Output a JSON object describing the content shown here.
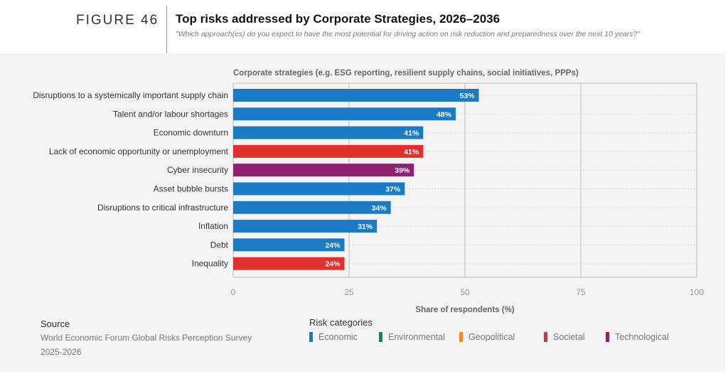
{
  "header": {
    "figure": "FIGURE 46",
    "title": "Top risks addressed by Corporate Strategies, 2026–2036",
    "subtitle": "\"Which approach(es) do you expect to have the most potential for driving action on risk reduction and preparedness over the next 10 years?\""
  },
  "chart_data": {
    "type": "bar",
    "orientation": "horizontal",
    "title": "Corporate strategies (e.g. ESG reporting, resilient supply chains, social initiatives, PPPs)",
    "xlabel": "Share of respondents (%)",
    "xlim": [
      0,
      100
    ],
    "xticks": [
      "0",
      "25",
      "50",
      "75",
      "100"
    ],
    "categories": [
      "Disruptions to a systemically important supply chain",
      "Talent and/or labour shortages",
      "Economic downturn",
      "Lack of economic opportunity or unemployment",
      "Cyber insecurity",
      "Asset bubble bursts",
      "Disruptions to critical infrastructure",
      "Inflation",
      "Debt",
      "Inequality"
    ],
    "values": [
      53,
      48,
      41,
      41,
      39,
      37,
      34,
      31,
      24,
      24
    ],
    "labels": [
      "53%",
      "48%",
      "41%",
      "41%",
      "39%",
      "37%",
      "34%",
      "31%",
      "24%",
      "24%"
    ],
    "risk_category": [
      "Economic",
      "Economic",
      "Economic",
      "Societal",
      "Technological",
      "Economic",
      "Economic",
      "Economic",
      "Economic",
      "Societal"
    ]
  },
  "legend": {
    "title": "Risk categories",
    "items": [
      {
        "label": "Economic",
        "color": "#1a7bc4"
      },
      {
        "label": "Environmental",
        "color": "#0f8a4f"
      },
      {
        "label": "Geopolitical",
        "color": "#f08a24"
      },
      {
        "label": "Societal",
        "color": "#e2302c"
      },
      {
        "label": "Technological",
        "color": "#8e1f72"
      }
    ]
  },
  "source": {
    "heading": "Source",
    "line1": "World Economic Forum Global Risks Perception Survey",
    "line2": "2025-2026"
  }
}
